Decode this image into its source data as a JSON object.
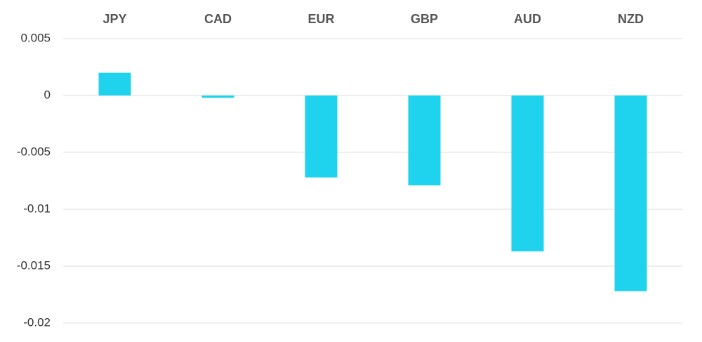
{
  "chart_data": {
    "type": "bar",
    "categories": [
      "JPY",
      "CAD",
      "EUR",
      "GBP",
      "AUD",
      "NZD"
    ],
    "values": [
      0.002,
      -0.0002,
      -0.0072,
      -0.0079,
      -0.0137,
      -0.0172
    ],
    "color": "#1fd3ef",
    "ylim": [
      -0.02,
      0.005
    ],
    "yticks": [
      0.005,
      0,
      -0.005,
      -0.01,
      -0.015,
      -0.02
    ],
    "grid": true
  }
}
